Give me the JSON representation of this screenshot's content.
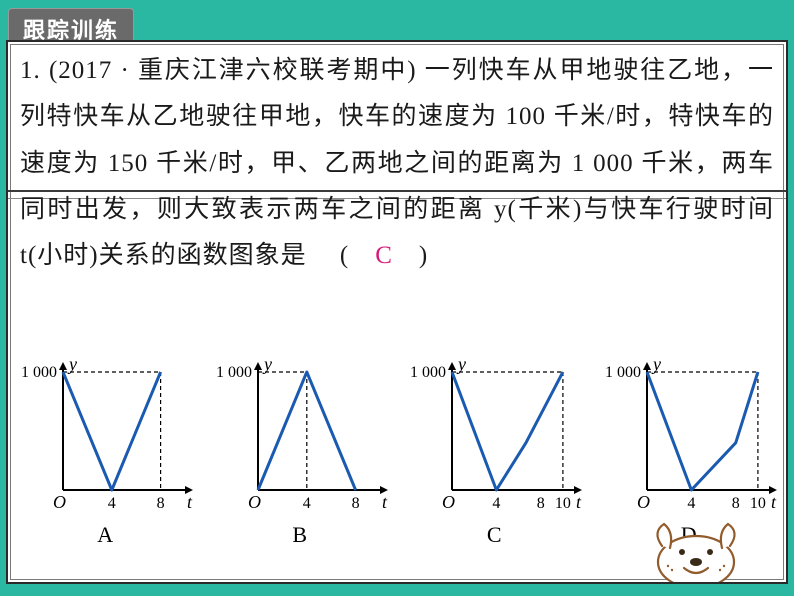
{
  "badge": "跟踪训练",
  "qno": "1.",
  "source": "(2017 · 重庆江津六校联考期中)",
  "problem_body": "一列快车从甲地驶往乙地，一列特快车从乙地驶往甲地，快车的速度为 100 千米/时，特快车的速度为 150 千米/时，甲、乙两地之间的距离为 1 000 千米，两车同时出发，则大致表示两车之间的距离 y(千米)与快车行驶时间 t(小时)关系的函数图象是",
  "answer": "C",
  "y_axis_value": "1 000",
  "axis_t": "t",
  "axis_y": "y",
  "axis_o": "O",
  "colors": {
    "page_bg": "#2bb8a3",
    "card_bg": "#ffffff",
    "text": "#1a1a1a",
    "answer": "#d81b7a",
    "axis": "#000000",
    "curve": "#1a5ab0",
    "dash": "#000000",
    "dog_outline": "#925b2c",
    "dog_nose": "#3a2a18"
  },
  "graphs": [
    {
      "label": "A",
      "xticks": [
        4,
        8
      ],
      "curve_points": [
        [
          0,
          1000
        ],
        [
          4,
          0
        ],
        [
          8,
          1000
        ]
      ],
      "ylim": 1000,
      "xlim": 10,
      "dashed_x": [
        8
      ],
      "dashed_y": [
        1000
      ],
      "dashed_at_x8_to_y1000": true
    },
    {
      "label": "B",
      "xticks": [
        4,
        8
      ],
      "curve_points": [
        [
          0,
          0
        ],
        [
          4,
          1000
        ],
        [
          8,
          0
        ]
      ],
      "ylim": 1000,
      "xlim": 10,
      "dashed_x": [
        4
      ],
      "dashed_y": [
        1000
      ]
    },
    {
      "label": "C",
      "xticks": [
        4,
        8,
        10
      ],
      "curve_points": [
        [
          0,
          1000
        ],
        [
          4,
          0
        ],
        [
          6.666,
          400
        ],
        [
          10,
          1000
        ]
      ],
      "ylim": 1000,
      "xlim": 11,
      "dashed_x": [
        10
      ],
      "dashed_y": [
        1000
      ]
    },
    {
      "label": "D",
      "xticks": [
        4,
        8,
        10
      ],
      "curve_points": [
        [
          0,
          1000
        ],
        [
          4,
          0
        ],
        [
          8,
          400
        ],
        [
          10,
          1000
        ]
      ],
      "ylim": 1000,
      "xlim": 11,
      "dashed_x": [
        10
      ],
      "dashed_y": [
        1000
      ]
    }
  ]
}
